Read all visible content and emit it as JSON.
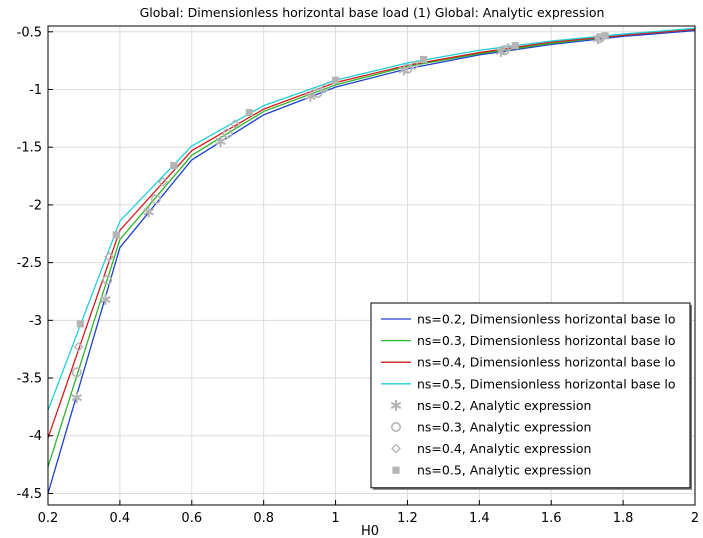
{
  "chart_data": {
    "type": "line",
    "title": "Global: Dimensionless horizontal base load (1)  Global: Analytic expression",
    "xlabel": "H0",
    "ylabel": "",
    "xlim": [
      0.2,
      2.0
    ],
    "ylim": [
      -4.6,
      -0.45
    ],
    "xticks": [
      0.2,
      0.4,
      0.6,
      0.8,
      1.0,
      1.2,
      1.4,
      1.6,
      1.8,
      2.0
    ],
    "xtick_labels": [
      "0.2",
      "0.4",
      "0.6",
      "0.8",
      "1",
      "1.2",
      "1.4",
      "1.6",
      "1.8",
      "2"
    ],
    "yticks": [
      -4.5,
      -4,
      -3.5,
      -3,
      -2.5,
      -2,
      -1.5,
      -1,
      -0.5
    ],
    "ytick_labels": [
      "-4.5",
      "-4",
      "-3.5",
      "-3",
      "-2.5",
      "-2",
      "-1.5",
      "-1",
      "-0.5"
    ],
    "grid": true,
    "legend_position": "bottom-right",
    "series": [
      {
        "name": "ns=0.2, Dimensionless horizontal base lo",
        "kind": "line",
        "color": "#1f3fd0",
        "x": [
          0.2,
          0.4,
          0.6,
          0.8,
          1.0,
          1.2,
          1.4,
          1.6,
          1.8,
          2.0
        ],
        "y": [
          -4.5,
          -2.37,
          -1.61,
          -1.22,
          -0.98,
          -0.82,
          -0.7,
          -0.61,
          -0.54,
          -0.49
        ]
      },
      {
        "name": "ns=0.3, Dimensionless horizontal base lo",
        "kind": "line",
        "color": "#2cb52c",
        "x": [
          0.2,
          0.4,
          0.6,
          0.8,
          1.0,
          1.2,
          1.4,
          1.6,
          1.8,
          2.0
        ],
        "y": [
          -4.27,
          -2.3,
          -1.57,
          -1.19,
          -0.96,
          -0.8,
          -0.69,
          -0.6,
          -0.53,
          -0.48
        ]
      },
      {
        "name": "ns=0.4, Dimensionless horizontal base lo",
        "kind": "line",
        "color": "#d41c1c",
        "x": [
          0.2,
          0.4,
          0.6,
          0.8,
          1.0,
          1.2,
          1.4,
          1.6,
          1.8,
          2.0
        ],
        "y": [
          -4.02,
          -2.22,
          -1.53,
          -1.17,
          -0.94,
          -0.79,
          -0.68,
          -0.59,
          -0.53,
          -0.48
        ]
      },
      {
        "name": "ns=0.5, Dimensionless horizontal base lo",
        "kind": "line",
        "color": "#22cfd8",
        "x": [
          0.2,
          0.4,
          0.6,
          0.8,
          1.0,
          1.2,
          1.4,
          1.6,
          1.8,
          2.0
        ],
        "y": [
          -3.78,
          -2.14,
          -1.49,
          -1.14,
          -0.92,
          -0.77,
          -0.66,
          -0.58,
          -0.52,
          -0.47
        ]
      },
      {
        "name": "ns=0.2, Analytic expression",
        "kind": "marker",
        "marker": "asterisk",
        "color": "#b4b4b4",
        "x": [
          0.28,
          0.36,
          0.48,
          0.68,
          0.93,
          1.19,
          1.46,
          1.73
        ],
        "y": [
          -3.67,
          -2.82,
          -2.06,
          -1.45,
          -1.06,
          -0.83,
          -0.67,
          -0.56
        ]
      },
      {
        "name": "ns=0.3, Analytic expression",
        "kind": "marker",
        "marker": "circle",
        "color": "#b4b4b4",
        "x": [
          0.28,
          0.365,
          0.5,
          0.7,
          0.95,
          1.2,
          1.47,
          1.735
        ],
        "y": [
          -3.45,
          -2.65,
          -1.95,
          -1.38,
          -1.03,
          -0.82,
          -0.66,
          -0.555
        ]
      },
      {
        "name": "ns=0.4, Analytic expression",
        "kind": "marker",
        "marker": "diamond",
        "color": "#b4b4b4",
        "x": [
          0.285,
          0.37,
          0.52,
          0.72,
          0.97,
          1.22,
          1.48,
          1.74
        ],
        "y": [
          -3.23,
          -2.45,
          -1.8,
          -1.3,
          -0.99,
          -0.79,
          -0.64,
          -0.55
        ]
      },
      {
        "name": "ns=0.5, Analytic expression",
        "kind": "marker",
        "marker": "square",
        "color": "#b4b4b4",
        "x": [
          0.29,
          0.39,
          0.55,
          0.76,
          1.0,
          1.245,
          1.5,
          1.75
        ],
        "y": [
          -3.03,
          -2.26,
          -1.66,
          -1.2,
          -0.92,
          -0.74,
          -0.62,
          -0.535
        ]
      }
    ]
  }
}
